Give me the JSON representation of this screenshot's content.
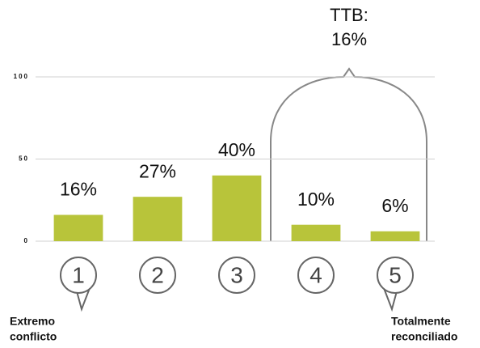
{
  "chart_data": {
    "type": "bar",
    "categories": [
      "1",
      "2",
      "3",
      "4",
      "5"
    ],
    "values": [
      16,
      27,
      40,
      10,
      6
    ],
    "value_labels": [
      "16%",
      "27%",
      "40%",
      "10%",
      "6%"
    ],
    "color": "#b8c43a",
    "ylim": [
      0,
      100
    ],
    "yticks": [
      0,
      50,
      100
    ],
    "grid": true,
    "annotations": {
      "ttb_label": "TTB:",
      "ttb_value": "16%",
      "left_note": [
        "Extremo",
        "conflicto"
      ],
      "right_note": [
        "Totalmente",
        "reconciliado"
      ]
    }
  }
}
